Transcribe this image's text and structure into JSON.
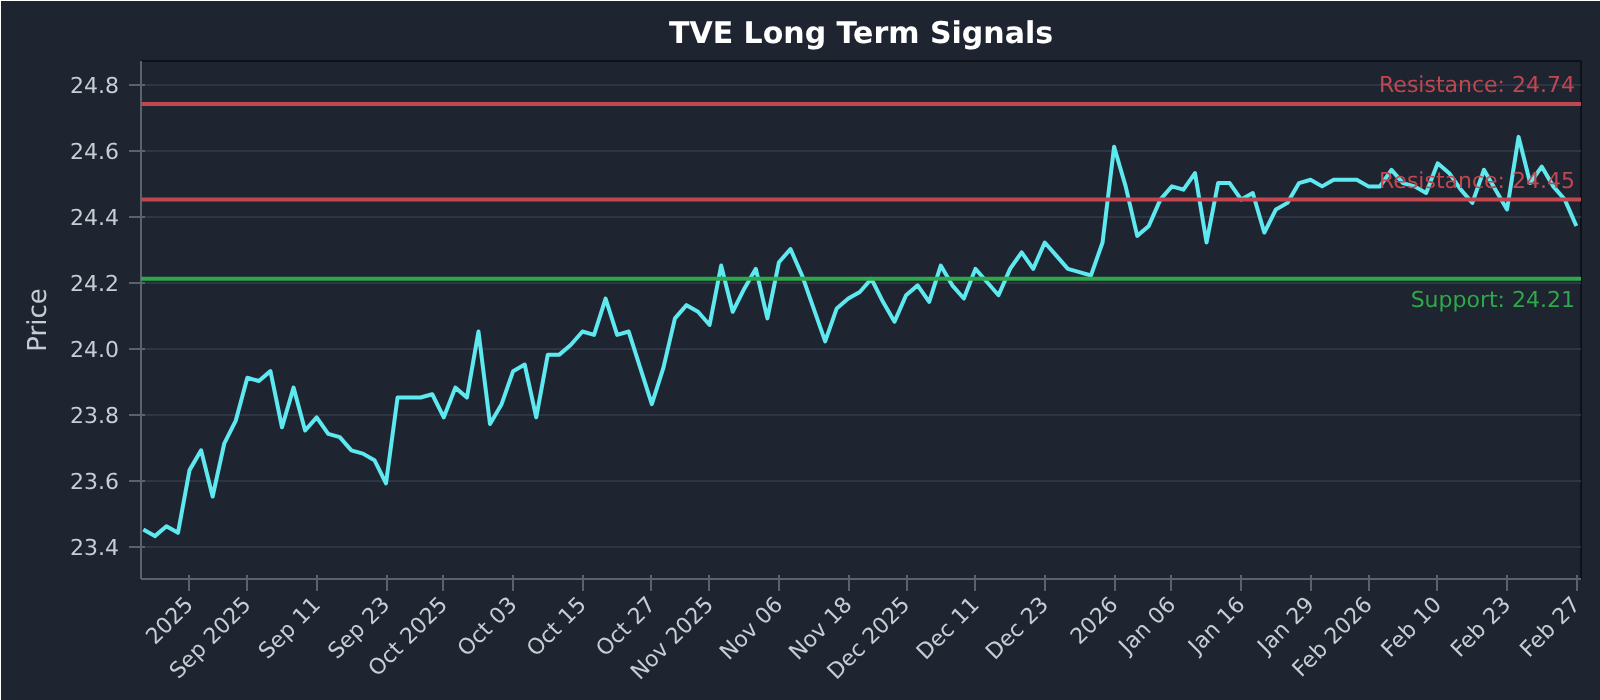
{
  "chart_data": {
    "type": "line",
    "title": "TVE Long Term Signals",
    "ylabel": "Price",
    "categories": [
      null,
      null,
      null,
      null,
      "2025",
      null,
      null,
      null,
      null,
      "Sep 2025",
      null,
      null,
      null,
      null,
      null,
      "Sep 11",
      null,
      null,
      null,
      null,
      null,
      "Sep 23",
      null,
      null,
      null,
      null,
      "Oct 2025",
      null,
      null,
      null,
      null,
      null,
      "Oct 03",
      null,
      null,
      null,
      null,
      null,
      "Oct 15",
      null,
      null,
      null,
      null,
      null,
      "Oct 27",
      null,
      null,
      null,
      null,
      "Nov 2025",
      null,
      null,
      null,
      null,
      null,
      "Nov 06",
      null,
      null,
      null,
      null,
      null,
      "Nov 18",
      null,
      null,
      null,
      null,
      "Dec 2025",
      null,
      null,
      null,
      null,
      null,
      "Dec 11",
      null,
      null,
      null,
      null,
      null,
      "Dec 23",
      null,
      null,
      null,
      null,
      null,
      "2026",
      null,
      null,
      null,
      null,
      "Jan 06",
      null,
      null,
      null,
      null,
      null,
      "Jan 16",
      null,
      null,
      null,
      null,
      null,
      "Jan 29",
      null,
      null,
      null,
      null,
      "Feb 2026",
      null,
      null,
      null,
      null,
      null,
      "Feb 10",
      null,
      null,
      null,
      null,
      null,
      "Feb 23",
      null,
      null,
      null,
      null,
      null,
      "Feb 27"
    ],
    "series": [
      {
        "color": "#5ee8f0",
        "values": [
          23.45,
          23.43,
          23.46,
          23.44,
          23.63,
          23.69,
          23.55,
          23.71,
          23.78,
          23.91,
          23.9,
          23.93,
          23.76,
          23.88,
          23.75,
          23.79,
          23.74,
          23.73,
          23.69,
          23.68,
          23.66,
          23.59,
          23.85,
          23.85,
          23.85,
          23.86,
          23.79,
          23.88,
          23.85,
          24.05,
          23.77,
          23.83,
          23.93,
          23.95,
          23.79,
          23.98,
          23.98,
          24.01,
          24.05,
          24.04,
          24.15,
          24.04,
          24.05,
          23.94,
          23.83,
          23.94,
          24.09,
          24.13,
          24.11,
          24.07,
          24.25,
          24.11,
          24.18,
          24.24,
          24.09,
          24.26,
          24.3,
          24.22,
          24.12,
          24.02,
          24.12,
          24.15,
          24.17,
          24.21,
          24.14,
          24.08,
          24.16,
          24.19,
          24.14,
          24.25,
          24.19,
          24.15,
          24.24,
          24.2,
          24.16,
          24.24,
          24.29,
          24.24,
          24.32,
          24.28,
          24.24,
          24.23,
          24.22,
          24.32,
          24.61,
          24.49,
          24.34,
          24.37,
          24.45,
          24.49,
          24.48,
          24.53,
          24.32,
          24.5,
          24.5,
          24.45,
          24.47,
          24.35,
          24.42,
          24.44,
          24.5,
          24.51,
          24.49,
          24.51,
          24.51,
          24.51,
          24.49,
          24.49,
          24.54,
          24.5,
          24.49,
          24.47,
          24.56,
          24.53,
          24.48,
          24.44,
          24.54,
          24.48,
          24.42,
          24.64,
          24.5,
          24.55,
          24.49,
          24.45,
          24.37
        ]
      }
    ],
    "ylim": [
      23.3,
      24.87
    ],
    "yticks": [
      {
        "value": 23.4,
        "label": "23.4"
      },
      {
        "value": 23.6,
        "label": "23.6"
      },
      {
        "value": 23.8,
        "label": "23.8"
      },
      {
        "value": 24.0,
        "label": "24.0"
      },
      {
        "value": 24.2,
        "label": "24.2"
      },
      {
        "value": 24.4,
        "label": "24.4"
      },
      {
        "value": 24.6,
        "label": "24.6"
      },
      {
        "value": 24.8,
        "label": "24.8"
      }
    ],
    "ref_lines": [
      {
        "axis": "y",
        "value": 24.74,
        "label": "Resistance: 24.74",
        "color": "#c0474f"
      },
      {
        "axis": "y",
        "value": 24.45,
        "label": "Resistance: 24.45",
        "color": "#c0474f"
      },
      {
        "axis": "y",
        "value": 24.21,
        "label": "Support: 24.21",
        "color": "#2ea84a"
      }
    ],
    "grid": "y",
    "marker": "none",
    "line_style": "solid"
  }
}
